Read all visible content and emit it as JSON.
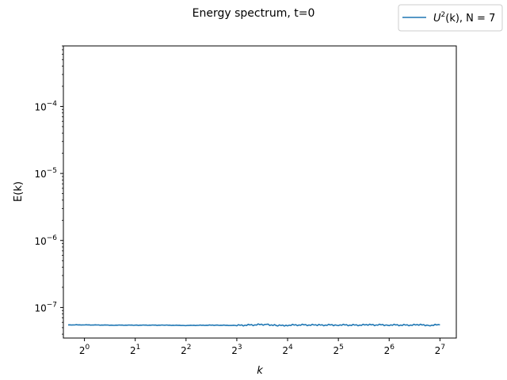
{
  "chart_data": {
    "type": "line",
    "title": "Energy spectrum, t=0",
    "xlabel": "k",
    "ylabel": "E(k)",
    "xscale": "log2",
    "yscale": "log10",
    "xlim": [
      0.75,
      160
    ],
    "ylim": [
      3.5e-08,
      0.0008
    ],
    "x_ticks": [
      {
        "value": 1,
        "base": "2",
        "exp": "0"
      },
      {
        "value": 2,
        "base": "2",
        "exp": "1"
      },
      {
        "value": 4,
        "base": "2",
        "exp": "2"
      },
      {
        "value": 8,
        "base": "2",
        "exp": "3"
      },
      {
        "value": 16,
        "base": "2",
        "exp": "4"
      },
      {
        "value": 32,
        "base": "2",
        "exp": "5"
      },
      {
        "value": 64,
        "base": "2",
        "exp": "6"
      },
      {
        "value": 128,
        "base": "2",
        "exp": "7"
      }
    ],
    "y_ticks": [
      {
        "value": 1e-07,
        "base": "10",
        "exp": "−7"
      },
      {
        "value": 1e-06,
        "base": "10",
        "exp": "−6"
      },
      {
        "value": 1e-05,
        "base": "10",
        "exp": "−5"
      },
      {
        "value": 0.0001,
        "base": "10",
        "exp": "−4"
      }
    ],
    "grid": false,
    "legend_position": "top-right (outside axes)",
    "series": [
      {
        "name": "U²(k), N = 7",
        "color": "#1f77b4",
        "x": [
          0.8,
          1,
          1.5,
          2,
          3,
          4,
          6,
          8,
          10,
          12,
          14,
          16,
          20,
          24,
          32,
          40,
          48,
          64,
          80,
          96,
          112,
          128
        ],
        "y": [
          5.5e-08,
          5.5e-08,
          5.45e-08,
          5.45e-08,
          5.45e-08,
          5.4e-08,
          5.45e-08,
          5.4e-08,
          5.5e-08,
          5.6e-08,
          5.35e-08,
          5.45e-08,
          5.5e-08,
          5.45e-08,
          5.5e-08,
          5.45e-08,
          5.5e-08,
          5.5e-08,
          5.45e-08,
          5.5e-08,
          5.45e-08,
          5.5e-08
        ]
      }
    ],
    "legend": {
      "prefix": "U",
      "sup": "2",
      "mid": "(k), N = 7"
    }
  }
}
